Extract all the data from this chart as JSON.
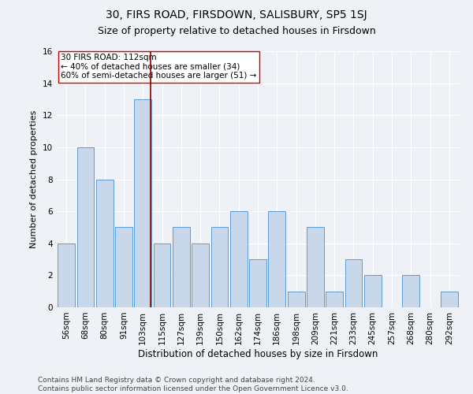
{
  "title": "30, FIRS ROAD, FIRSDOWN, SALISBURY, SP5 1SJ",
  "subtitle": "Size of property relative to detached houses in Firsdown",
  "xlabel": "Distribution of detached houses by size in Firsdown",
  "ylabel": "Number of detached properties",
  "categories": [
    "56sqm",
    "68sqm",
    "80sqm",
    "91sqm",
    "103sqm",
    "115sqm",
    "127sqm",
    "139sqm",
    "150sqm",
    "162sqm",
    "174sqm",
    "186sqm",
    "198sqm",
    "209sqm",
    "221sqm",
    "233sqm",
    "245sqm",
    "257sqm",
    "268sqm",
    "280sqm",
    "292sqm"
  ],
  "values": [
    4,
    10,
    8,
    5,
    13,
    4,
    5,
    4,
    5,
    6,
    3,
    6,
    1,
    5,
    1,
    3,
    2,
    0,
    2,
    0,
    1
  ],
  "bar_color": "#c8d8ea",
  "bar_edge_color": "#5b9bd5",
  "highlight_index": 4,
  "highlight_line_color": "#8b0000",
  "annotation_text": "30 FIRS ROAD: 112sqm\n← 40% of detached houses are smaller (34)\n60% of semi-detached houses are larger (51) →",
  "annotation_box_color": "#ffffff",
  "annotation_box_edge": "#cc0000",
  "ylim": [
    0,
    16
  ],
  "yticks": [
    0,
    2,
    4,
    6,
    8,
    10,
    12,
    14,
    16
  ],
  "background_color": "#eef2f7",
  "footer_text": "Contains HM Land Registry data © Crown copyright and database right 2024.\nContains public sector information licensed under the Open Government Licence v3.0.",
  "title_fontsize": 10,
  "subtitle_fontsize": 9,
  "xlabel_fontsize": 8.5,
  "ylabel_fontsize": 8,
  "tick_fontsize": 7.5,
  "annotation_fontsize": 7.5,
  "footer_fontsize": 6.5
}
